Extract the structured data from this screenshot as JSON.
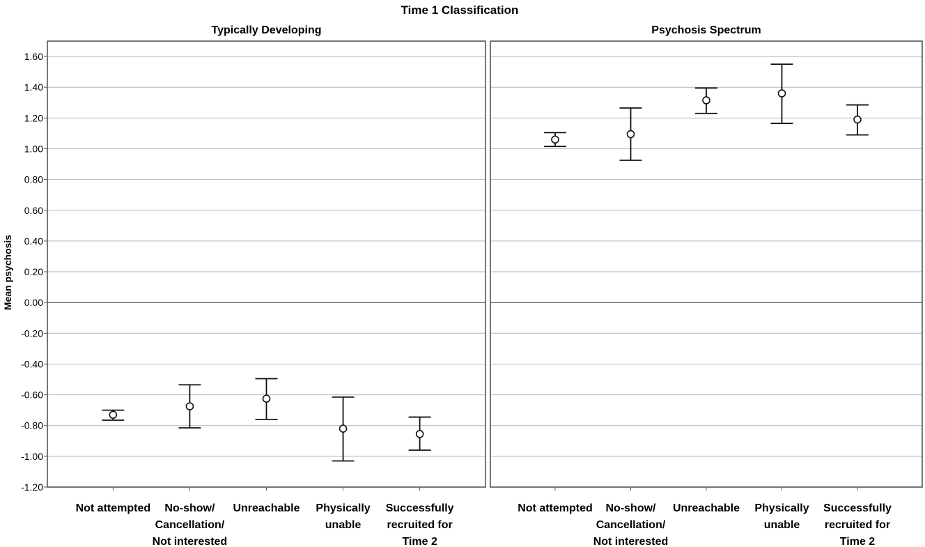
{
  "chart_data": {
    "type": "errorbar",
    "title": "Time 1 Classification",
    "ylabel": "Mean psychosis",
    "xlabel": "",
    "ylim": [
      -1.2,
      1.7
    ],
    "yticks": [
      "1.60",
      "1.40",
      "1.20",
      "1.00",
      "0.80",
      "0.60",
      "0.40",
      "0.20",
      "0.00",
      "-0.20",
      "-0.40",
      "-0.60",
      "-0.80",
      "-1.00",
      "-1.20"
    ],
    "grid": true,
    "categories": [
      [
        "Not attempted"
      ],
      [
        "No-show/",
        "Cancellation/",
        "Not interested"
      ],
      [
        "Unreachable"
      ],
      [
        "Physically",
        "unable"
      ],
      [
        "Successfully",
        "recruited for",
        "Time 2"
      ]
    ],
    "panels": [
      {
        "name": "Typically Developing",
        "points": [
          {
            "mean": -0.73,
            "lower": -0.765,
            "upper": -0.7
          },
          {
            "mean": -0.675,
            "lower": -0.815,
            "upper": -0.535
          },
          {
            "mean": -0.625,
            "lower": -0.76,
            "upper": -0.495
          },
          {
            "mean": -0.82,
            "lower": -1.03,
            "upper": -0.615
          },
          {
            "mean": -0.855,
            "lower": -0.96,
            "upper": -0.745
          }
        ]
      },
      {
        "name": "Psychosis Spectrum",
        "points": [
          {
            "mean": 1.06,
            "lower": 1.015,
            "upper": 1.105
          },
          {
            "mean": 1.095,
            "lower": 0.925,
            "upper": 1.265
          },
          {
            "mean": 1.315,
            "lower": 1.23,
            "upper": 1.395
          },
          {
            "mean": 1.36,
            "lower": 1.165,
            "upper": 1.55
          },
          {
            "mean": 1.19,
            "lower": 1.09,
            "upper": 1.285
          }
        ]
      }
    ]
  }
}
